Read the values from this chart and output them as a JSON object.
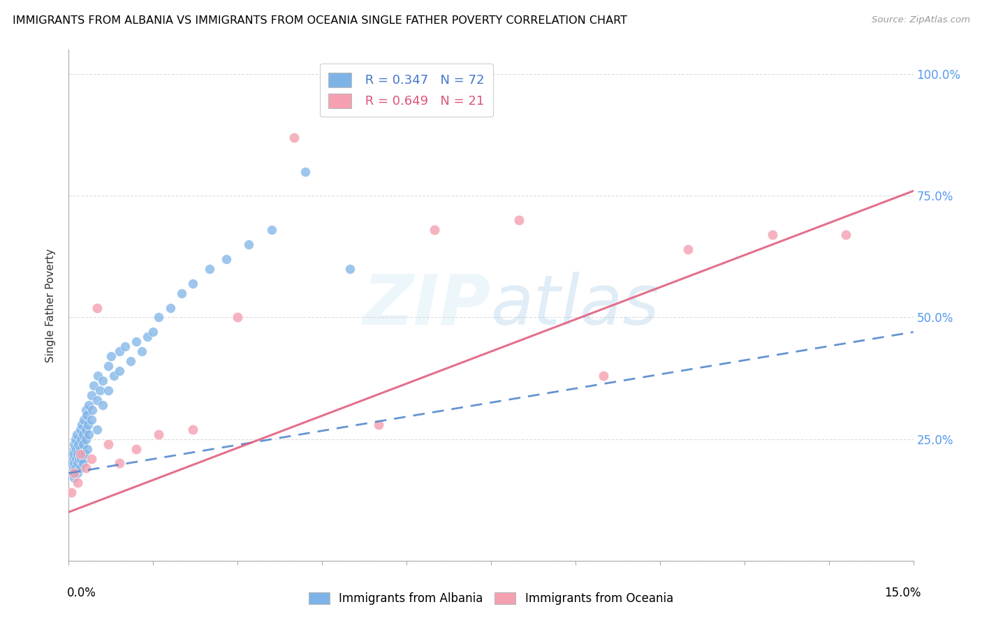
{
  "title": "IMMIGRANTS FROM ALBANIA VS IMMIGRANTS FROM OCEANIA SINGLE FATHER POVERTY CORRELATION CHART",
  "source": "Source: ZipAtlas.com",
  "ylabel": "Single Father Poverty",
  "xlim": [
    0.0,
    0.15
  ],
  "ylim": [
    0.0,
    1.05
  ],
  "albania_R": 0.347,
  "albania_N": 72,
  "oceania_R": 0.649,
  "oceania_N": 21,
  "albania_color": "#7EB3E8",
  "oceania_color": "#F4A0B0",
  "albania_line_color": "#5588CC",
  "oceania_line_color": "#E06080",
  "watermark": "ZIPatlas",
  "albania_x": [
    0.0005,
    0.0006,
    0.0007,
    0.0008,
    0.0008,
    0.0009,
    0.001,
    0.001,
    0.001,
    0.001,
    0.0012,
    0.0012,
    0.0013,
    0.0013,
    0.0014,
    0.0015,
    0.0015,
    0.0016,
    0.0017,
    0.0018,
    0.002,
    0.002,
    0.002,
    0.0022,
    0.0022,
    0.0023,
    0.0024,
    0.0025,
    0.0025,
    0.0026,
    0.0027,
    0.0028,
    0.003,
    0.003,
    0.003,
    0.0032,
    0.0033,
    0.0034,
    0.0035,
    0.0036,
    0.004,
    0.004,
    0.0042,
    0.0044,
    0.005,
    0.005,
    0.0052,
    0.0055,
    0.006,
    0.006,
    0.007,
    0.007,
    0.0075,
    0.008,
    0.009,
    0.009,
    0.01,
    0.011,
    0.012,
    0.013,
    0.014,
    0.015,
    0.016,
    0.018,
    0.02,
    0.022,
    0.025,
    0.028,
    0.032,
    0.036,
    0.042,
    0.05
  ],
  "albania_y": [
    0.2,
    0.22,
    0.18,
    0.21,
    0.19,
    0.23,
    0.24,
    0.2,
    0.17,
    0.22,
    0.25,
    0.19,
    0.21,
    0.23,
    0.26,
    0.2,
    0.18,
    0.22,
    0.24,
    0.21,
    0.27,
    0.23,
    0.19,
    0.25,
    0.21,
    0.28,
    0.22,
    0.26,
    0.2,
    0.24,
    0.29,
    0.22,
    0.31,
    0.25,
    0.27,
    0.3,
    0.23,
    0.28,
    0.32,
    0.26,
    0.34,
    0.29,
    0.31,
    0.36,
    0.33,
    0.27,
    0.38,
    0.35,
    0.32,
    0.37,
    0.4,
    0.35,
    0.42,
    0.38,
    0.43,
    0.39,
    0.44,
    0.41,
    0.45,
    0.43,
    0.46,
    0.47,
    0.5,
    0.52,
    0.55,
    0.57,
    0.6,
    0.62,
    0.65,
    0.68,
    0.8,
    0.6
  ],
  "oceania_x": [
    0.0005,
    0.001,
    0.0015,
    0.002,
    0.003,
    0.004,
    0.005,
    0.007,
    0.009,
    0.012,
    0.016,
    0.022,
    0.03,
    0.04,
    0.055,
    0.065,
    0.08,
    0.095,
    0.11,
    0.125,
    0.138
  ],
  "oceania_y": [
    0.14,
    0.18,
    0.16,
    0.22,
    0.19,
    0.21,
    0.52,
    0.24,
    0.2,
    0.23,
    0.26,
    0.27,
    0.5,
    0.87,
    0.28,
    0.68,
    0.7,
    0.38,
    0.64,
    0.67,
    0.67
  ],
  "albania_trend": [
    0.0,
    0.15,
    0.18,
    0.47
  ],
  "oceania_trend": [
    0.0,
    0.15,
    0.1,
    0.76
  ]
}
